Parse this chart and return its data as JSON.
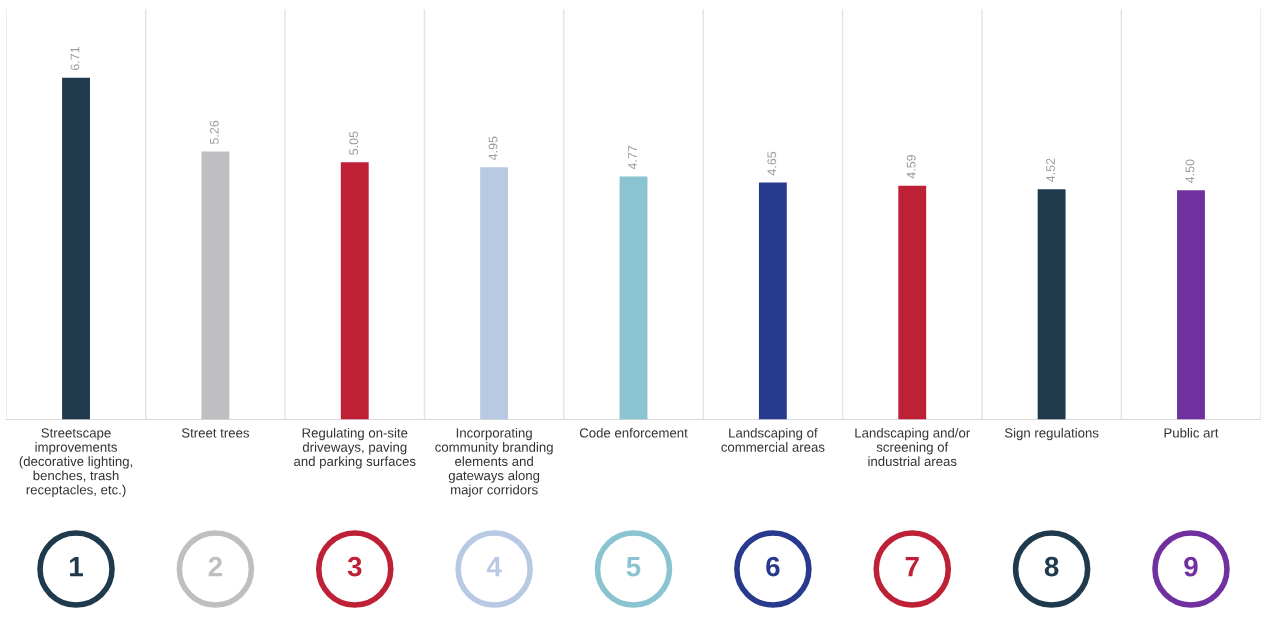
{
  "chart_data": {
    "type": "bar",
    "categories": [
      "Streetscape\nimprovements\n(decorative lighting,\nbenches, trash\nreceptacles, etc.)",
      "Street trees",
      "Regulating on-site\ndriveways, paving\nand parking surfaces",
      "Incorporating\ncommunity branding\nelements and\ngateways along\nmajor corridors",
      "Code enforcement",
      "Landscaping of\ncommercial areas",
      "Landscaping and/or\nscreening of\nindustrial areas",
      "Sign regulations",
      "Public art"
    ],
    "values": [
      6.71,
      5.26,
      5.05,
      4.95,
      4.77,
      4.65,
      4.59,
      4.52,
      4.5
    ],
    "value_labels": [
      "6.71",
      "5.26",
      "5.05",
      "4.95",
      "4.77",
      "4.65",
      "4.59",
      "4.52",
      "4.50"
    ],
    "colors": [
      "#1f3a4d",
      "#bfbfc1",
      "#be2036",
      "#b8c9e3",
      "#8ac4d0",
      "#283a8e",
      "#be2036",
      "#1f3a4d",
      "#7030a0"
    ],
    "grid": "x",
    "annotations": [
      "1",
      "2",
      "3",
      "4",
      "5",
      "6",
      "7",
      "8",
      "9"
    ]
  }
}
